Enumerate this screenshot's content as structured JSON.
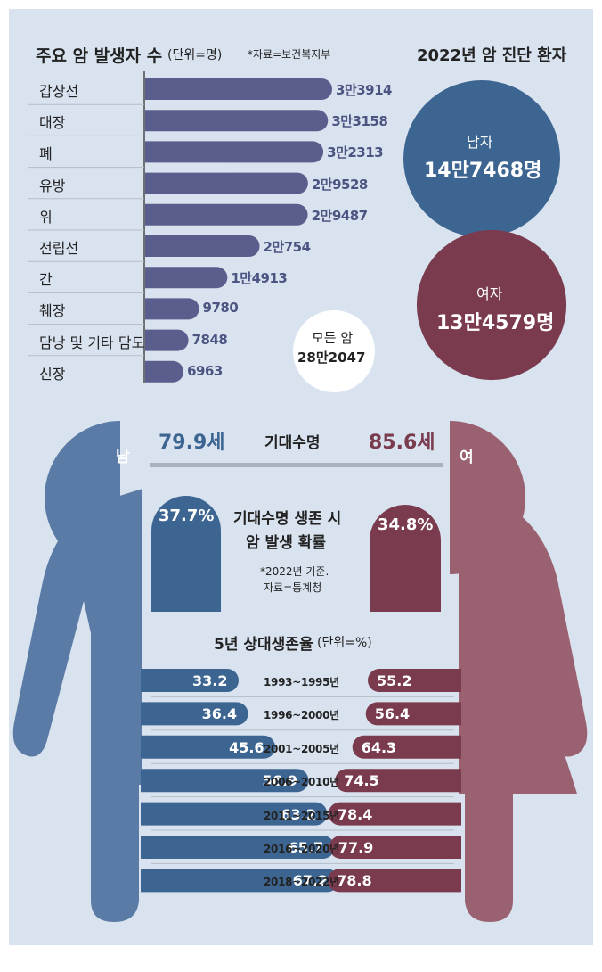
{
  "colors": {
    "panel_bg": "#d9e3ef",
    "bar": "#5a5e8c",
    "male": "#3d6591",
    "male_body": "#5a7ba6",
    "female": "#7b3b4e",
    "female_body": "#9a6270",
    "rule": "#a9b2bf",
    "dark_text": "#222222"
  },
  "chart_data": [
    {
      "type": "bar",
      "orientation": "horizontal",
      "title": "주요 암 발생자 수",
      "unit_note": "(단위=명)",
      "source_note": "*자료=보건복지부",
      "categories": [
        "갑상선",
        "대장",
        "폐",
        "유방",
        "위",
        "전립선",
        "간",
        "췌장",
        "담낭 및 기타 담도",
        "신장"
      ],
      "values": [
        33914,
        33158,
        32313,
        29528,
        29487,
        20754,
        14913,
        9780,
        7848,
        6963
      ],
      "value_labels": [
        "3만3914",
        "3만3158",
        "3만2313",
        "2만9528",
        "2만9487",
        "2만754",
        "1만4913",
        "9780",
        "7848",
        "6963"
      ],
      "total": {
        "label": "모든 암",
        "value_label": "28만2047"
      }
    },
    {
      "type": "bubble",
      "title": "2022년 암 진단 환자",
      "series": [
        {
          "name": "남자",
          "value": 147468,
          "value_label": "14만7468명"
        },
        {
          "name": "여자",
          "value": 134579,
          "value_label": "13만4579명"
        }
      ]
    },
    {
      "type": "comparison",
      "title": "기대수명",
      "male": {
        "label": "남",
        "value": 79.9,
        "value_label": "79.9세"
      },
      "female": {
        "label": "여",
        "value": 85.6,
        "value_label": "85.6세"
      }
    },
    {
      "type": "bar",
      "title": "기대수명 생존 시 암 발생 확률",
      "title_line1": "기대수명 생존 시",
      "title_line2": "암 발생 확률",
      "note_line1": "*2022년 기준.",
      "note_line2": "자료=통계청",
      "male": {
        "value": 37.7,
        "value_label": "37.7%"
      },
      "female": {
        "value": 34.8,
        "value_label": "34.8%"
      }
    },
    {
      "type": "bar",
      "orientation": "horizontal-diverging",
      "title": "5년 상대생존율",
      "unit_note": "(단위=%)",
      "categories": [
        "1993~1995년",
        "1996~2000년",
        "2001~2005년",
        "2006~2010년",
        "2011~2015년",
        "2016~2020년",
        "2018~2022년"
      ],
      "series": [
        {
          "name": "남",
          "values": [
            33.2,
            36.4,
            45.6,
            56.9,
            63.2,
            65.7,
            67.2
          ]
        },
        {
          "name": "여",
          "values": [
            55.2,
            56.4,
            64.3,
            74.5,
            78.4,
            77.9,
            78.8
          ]
        }
      ]
    }
  ]
}
